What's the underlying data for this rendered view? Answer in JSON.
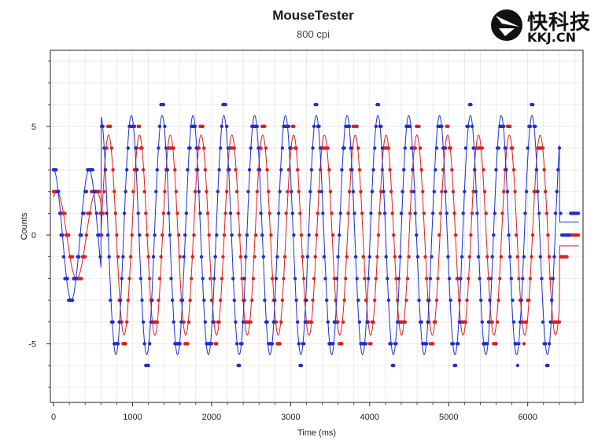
{
  "header": {
    "title": "MouseTester",
    "subtitle": "800 cpi"
  },
  "watermark": {
    "brand": "快科技",
    "domain": "KKJ.CN"
  },
  "colors": {
    "x_series": "#e01e1e",
    "y_series": "#1f2fd0",
    "grid": "#e6e6e6",
    "frame": "#222222"
  },
  "chart_data": {
    "type": "scatter",
    "title": "MouseTester",
    "subtitle": "800 cpi",
    "xlabel": "Time (ms)",
    "ylabel": "Counts",
    "xlim": [
      -40,
      6700
    ],
    "ylim": [
      -7.7,
      8.5
    ],
    "x_ticks": [
      0,
      1000,
      2000,
      3000,
      4000,
      5000,
      6000
    ],
    "y_ticks": [
      -5,
      0,
      5
    ],
    "grid": true,
    "series": [
      {
        "color": "#e01e1e",
        "signal": {
          "segments": [
            {
              "t_start": 0,
              "t_end": 600,
              "period_ms": 500,
              "amplitude": 2.0,
              "phase_deg": 60
            },
            {
              "t_start": 600,
              "t_end": 6400,
              "period_ms": 390,
              "amplitude": 4.6,
              "phase_deg": 0
            },
            {
              "t_start": 6400,
              "t_end": 6700,
              "level": -0.5
            }
          ]
        }
      },
      {
        "color": "#1f2fd0",
        "signal": {
          "segments": [
            {
              "t_start": 0,
              "t_end": 600,
              "period_ms": 450,
              "amplitude": 3.0,
              "phase_deg": 90
            },
            {
              "t_start": 600,
              "t_end": 6400,
              "period_ms": 390,
              "amplitude": 5.5,
              "phase_deg": 95
            },
            {
              "t_start": 6400,
              "t_end": 6700,
              "level": 0.6
            }
          ]
        }
      }
    ]
  }
}
